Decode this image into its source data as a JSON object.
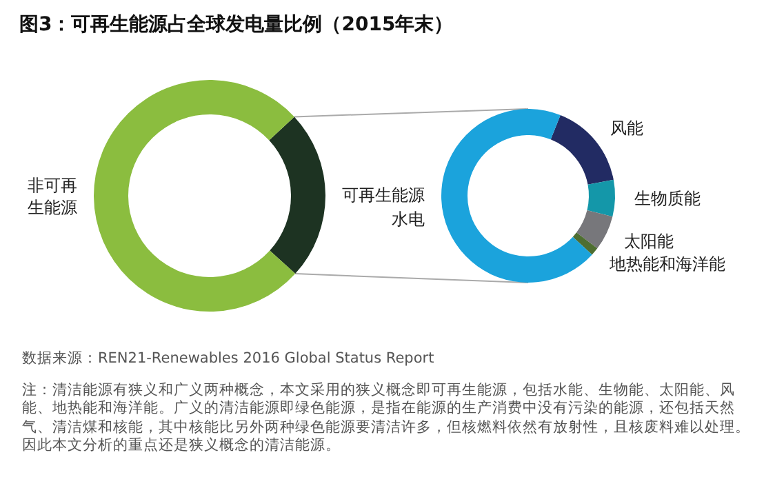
{
  "chart_data": [
    {
      "type": "donut",
      "title": "图3：可再生能源占全球发电量比例（2015年末）",
      "categories": [
        "可再生能源",
        "非可再生能源"
      ],
      "values": [
        23.7,
        76.3
      ],
      "colors": [
        "#1d3322",
        "#8bbd3f"
      ],
      "annotations": [
        "数据来源：REN21-Renewables 2016 Global Status Report",
        "注：清洁能源有狭义和广义两种概念，本文采用的狭义概念即可再生能源，包括水能、生物能、太阳能、风能、地热能和海洋能。广义的清洁能源即绿色能源，是指在能源的生产消费中没有污染的能源，还包括天然气、清洁煤和核能，其中核能比另外两种绿色能源要清洁许多，但核燃料依然有放射性，且核废料难以处理。因此本文分析的重点还是狭义概念的清洁能源。"
      ]
    },
    {
      "type": "donut",
      "categories": [
        "风能",
        "生物质能",
        "太阳能",
        "地热能和海洋能",
        "水电"
      ],
      "values": [
        16.0,
        6.8,
        6.5,
        1.5,
        69.2
      ],
      "colors": [
        "#222b63",
        "#1497a9",
        "#77777b",
        "#4e6e31",
        "#1ba3dc"
      ]
    }
  ]
}
